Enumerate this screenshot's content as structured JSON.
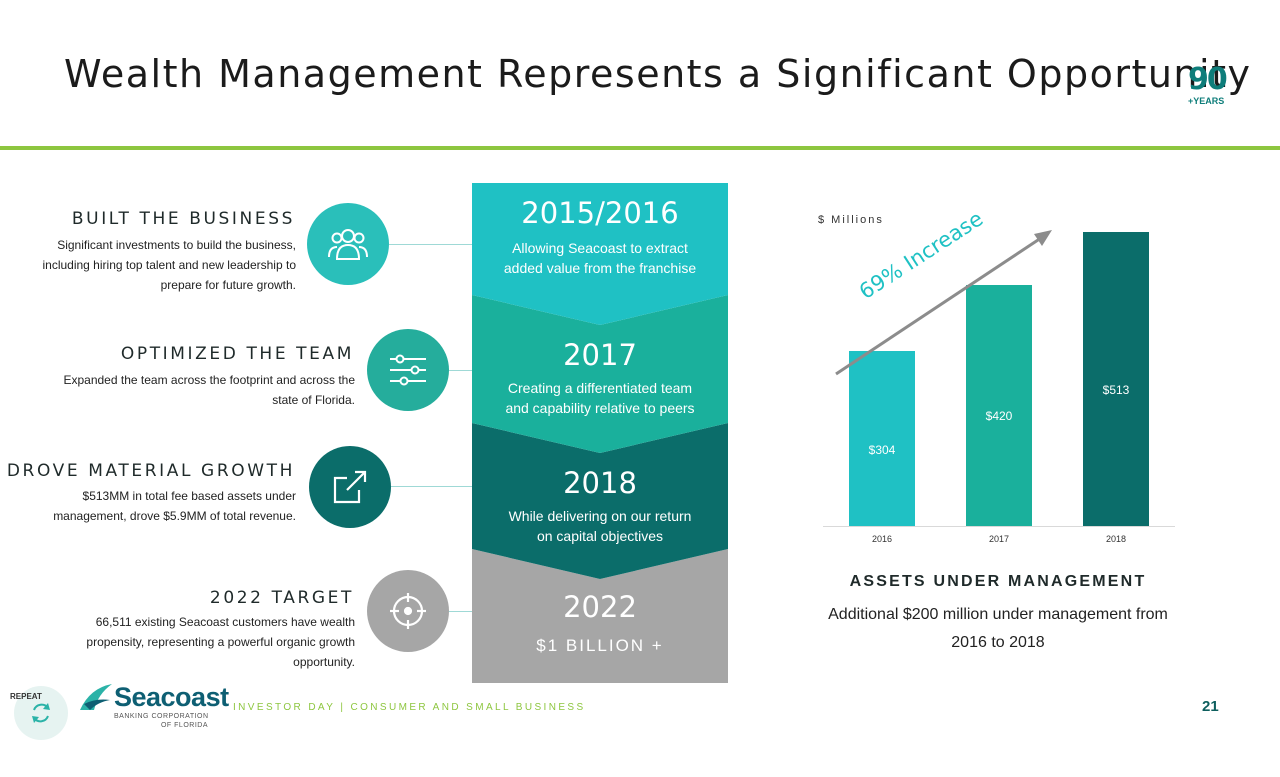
{
  "header": {
    "title": "Wealth Management Represents a Significant Opportunity",
    "badge_number": "90",
    "badge_text": "+YEARS"
  },
  "sections": [
    {
      "heading": "BUILT THE BUSINESS",
      "body": "Significant investments to build the business, including hiring top talent and new leadership to prepare for future growth.",
      "icon": "users-icon"
    },
    {
      "heading": "OPTIMIZED THE TEAM",
      "body": "Expanded the team across the footprint and across the state of Florida.",
      "icon": "sliders-icon"
    },
    {
      "heading": "DROVE MATERIAL GROWTH",
      "body": "$513MM in total fee based assets under management, drove $5.9MM of total revenue.",
      "icon": "external-arrow-icon"
    },
    {
      "heading": "2022 TARGET",
      "body": "66,511 existing Seacoast customers have wealth propensity, representing a powerful organic growth opportunity.",
      "icon": "target-icon"
    }
  ],
  "timeline": [
    {
      "title": "2015/2016",
      "subtitle": "Allowing Seacoast to extract added value from the franchise",
      "color": "#1fc1c4"
    },
    {
      "title": "2017",
      "subtitle": "Creating a differentiated team and capability relative to peers",
      "color": "#1ab09c"
    },
    {
      "title": "2018",
      "subtitle": "While delivering on our return on capital objectives",
      "color": "#0b6d6a"
    },
    {
      "title": "2022",
      "subtitle": "$1 BILLION +",
      "color": "#a6a6a6"
    }
  ],
  "chart_data": {
    "type": "bar",
    "ylabel": "$ Millions",
    "categories": [
      "2016",
      "2017",
      "2018"
    ],
    "values": [
      304,
      420,
      513
    ],
    "value_labels": [
      "$304",
      "$420",
      "$513"
    ],
    "colors": [
      "#1fc1c4",
      "#1ab09c",
      "#0b6d6a"
    ],
    "ylim": [
      0,
      540
    ],
    "annotation": "69% Increase",
    "grid": false
  },
  "aum": {
    "heading": "ASSETS UNDER MANAGEMENT",
    "body": "Additional $200 million under management from 2016 to 2018"
  },
  "footer": {
    "repeat_label": "REPEAT",
    "logo_name": "Seacoast",
    "logo_sub_1": "BANKING CORPORATION",
    "logo_sub_2": "OF FLORIDA",
    "caption": "INVESTOR DAY | CONSUMER AND SMALL BUSINESS",
    "page_number": "21"
  }
}
